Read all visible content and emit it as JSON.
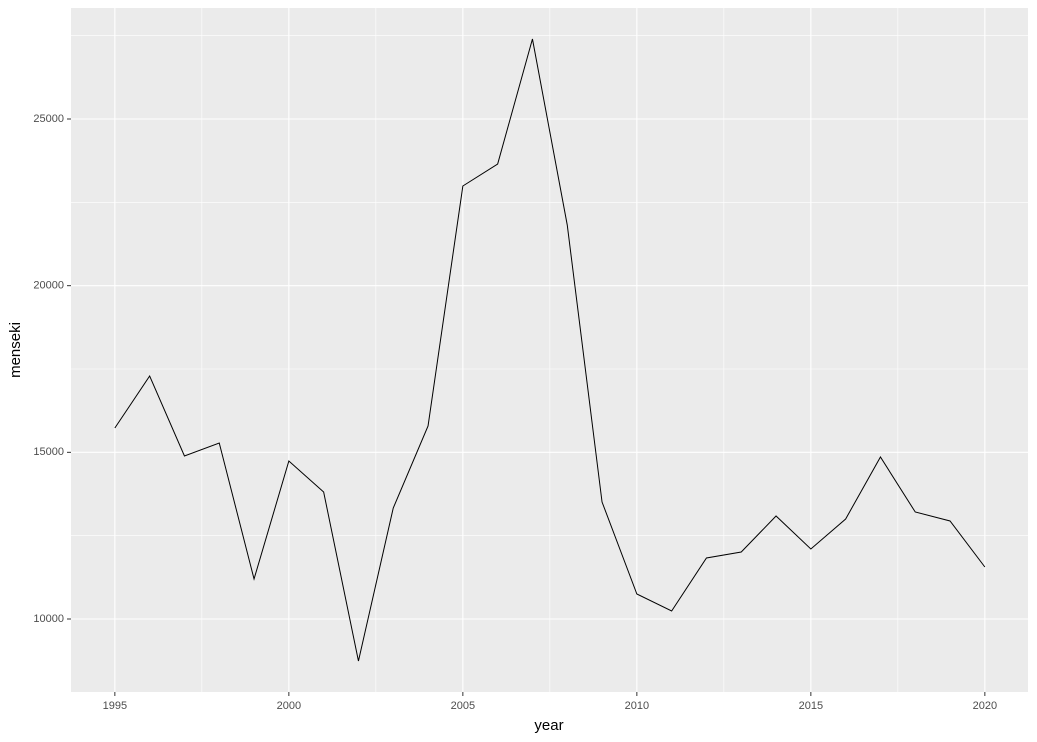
{
  "chart_data": {
    "type": "line",
    "x_label": "year",
    "y_label": "menseki",
    "x": [
      1995,
      1996,
      1997,
      1998,
      1999,
      2000,
      2001,
      2002,
      2003,
      2004,
      2005,
      2006,
      2007,
      2008,
      2009,
      2010,
      2011,
      2012,
      2013,
      2014,
      2015,
      2016,
      2017,
      2018,
      2019,
      2020
    ],
    "values": [
      15730,
      17290,
      14890,
      15280,
      11200,
      14740,
      13810,
      8740,
      13330,
      15790,
      22990,
      23650,
      27400,
      21820,
      13510,
      10750,
      10240,
      11830,
      12010,
      13090,
      12100,
      13000,
      14860,
      13210,
      12940,
      11560
    ],
    "color": "#000000",
    "xlim": [
      1993.74,
      2021.24
    ],
    "ylim": [
      7810,
      28330
    ],
    "xticks": [
      1995,
      2000,
      2005,
      2010,
      2015,
      2020
    ],
    "yticks": [
      10000,
      15000,
      20000,
      25000
    ],
    "x_minor_grid": [
      1997.5,
      2002.5,
      2007.5,
      2012.5,
      2017.5
    ],
    "y_minor_grid": [
      7500,
      12500,
      17500,
      22500,
      27500
    ],
    "grid": true
  }
}
